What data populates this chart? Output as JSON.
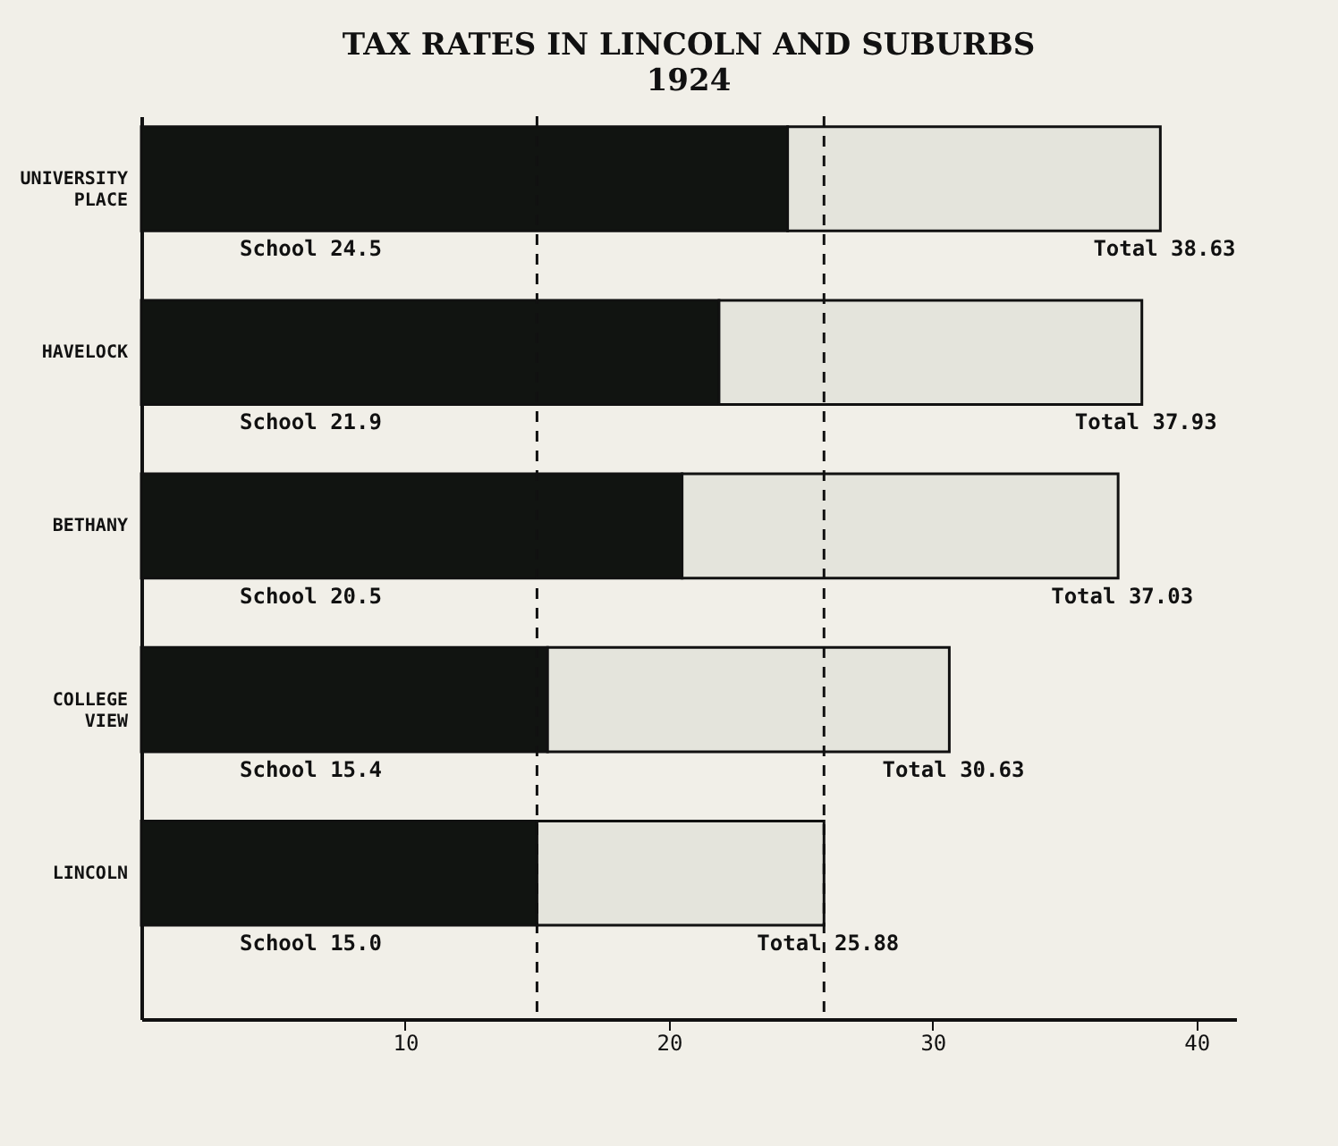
{
  "chart_data": {
    "type": "bar",
    "orientation": "horizontal",
    "stacked": true,
    "title": "TAX RATES IN LINCOLN AND SUBURBS",
    "subtitle": "1924",
    "categories": [
      "UNIVERSITY PLACE",
      "HAVELOCK",
      "BETHANY",
      "COLLEGE VIEW",
      "LINCOLN"
    ],
    "series": [
      {
        "color": "#111411",
        "values": [
          24.5,
          21.9,
          20.5,
          15.4,
          15.0
        ],
        "value_labels": [
          "School 24.5",
          "School 21.9",
          "School 20.5",
          "School 15.4",
          "School 15.0"
        ]
      },
      {
        "color": "#e4e4dc",
        "values": [
          14.13,
          16.03,
          16.53,
          15.23,
          10.88
        ]
      }
    ],
    "totals": [
      "Total 38.63",
      "Total 37.93",
      "Total 37.03",
      "Total 30.63",
      "Total 25.88"
    ],
    "xlim": [
      0,
      41.5
    ],
    "xticks": [
      10,
      20,
      30,
      40
    ],
    "ref_lines": [
      {
        "axis": "x",
        "value": 15,
        "color": "#111111",
        "line_style": "dashed"
      },
      {
        "axis": "x",
        "value": 25.88,
        "color": "#111111",
        "line_style": "dashed"
      }
    ],
    "grid": false,
    "legend": false
  }
}
